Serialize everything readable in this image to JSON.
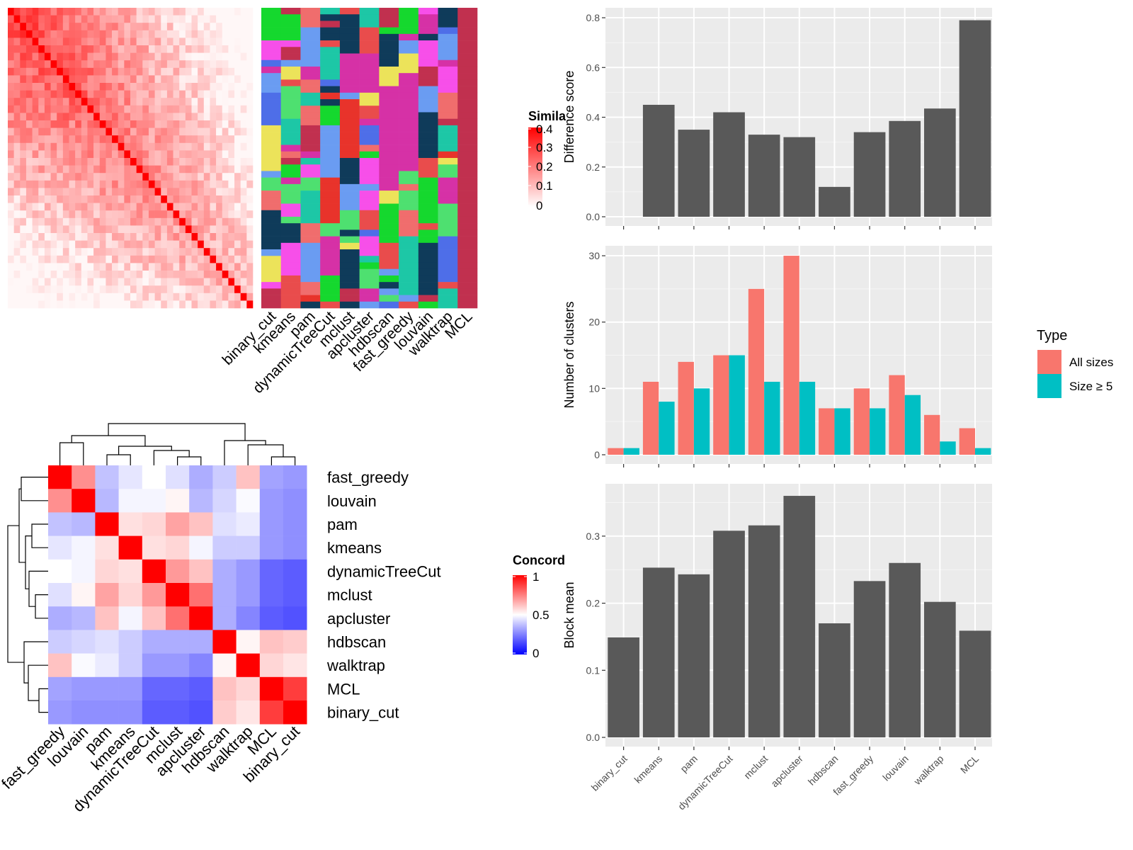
{
  "methods_order": [
    "binary_cut",
    "kmeans",
    "pam",
    "dynamicTreeCut",
    "mclust",
    "apcluster",
    "hdbscan",
    "fast_greedy",
    "louvain",
    "walktrap",
    "MCL"
  ],
  "similarity_heatmap": {
    "legend_title": "Simila",
    "legend_ticks": [
      "0.4",
      "0.3",
      "0.2",
      "0.1",
      "0"
    ],
    "low_color": "#ffffff",
    "high_color": "#ff0000"
  },
  "cluster_colors": [
    "#c1304f",
    "#d631a6",
    "#4e6ee8",
    "#6a9cf2",
    "#e8332b",
    "#f74fe9",
    "#0f3b5a",
    "#15d82e",
    "#e94c4c",
    "#1dc7a6",
    "#ece35a",
    "#4ee070",
    "#f06d6d"
  ],
  "concordance_heatmap": {
    "legend_title": "Concord",
    "legend_ticks": [
      "1",
      "0.5",
      "0"
    ],
    "row_order": [
      "fast_greedy",
      "louvain",
      "pam",
      "kmeans",
      "dynamicTreeCut",
      "mclust",
      "apcluster",
      "hdbscan",
      "walktrap",
      "MCL",
      "binary_cut"
    ],
    "matrix": [
      [
        1.0,
        0.72,
        0.38,
        0.45,
        0.5,
        0.44,
        0.34,
        0.4,
        0.62,
        0.32,
        0.3
      ],
      [
        0.72,
        1.0,
        0.36,
        0.48,
        0.48,
        0.52,
        0.36,
        0.42,
        0.49,
        0.3,
        0.28
      ],
      [
        0.38,
        0.36,
        1.0,
        0.56,
        0.58,
        0.68,
        0.62,
        0.44,
        0.46,
        0.3,
        0.28
      ],
      [
        0.45,
        0.48,
        0.56,
        1.0,
        0.56,
        0.58,
        0.48,
        0.4,
        0.4,
        0.3,
        0.28
      ],
      [
        0.5,
        0.48,
        0.58,
        0.56,
        1.0,
        0.7,
        0.62,
        0.34,
        0.3,
        0.2,
        0.18
      ],
      [
        0.44,
        0.52,
        0.68,
        0.58,
        0.7,
        1.0,
        0.78,
        0.34,
        0.3,
        0.2,
        0.18
      ],
      [
        0.34,
        0.36,
        0.62,
        0.48,
        0.62,
        0.78,
        1.0,
        0.34,
        0.26,
        0.18,
        0.16
      ],
      [
        0.4,
        0.42,
        0.44,
        0.4,
        0.34,
        0.34,
        0.34,
        1.0,
        0.52,
        0.62,
        0.6
      ],
      [
        0.62,
        0.49,
        0.46,
        0.4,
        0.3,
        0.3,
        0.26,
        0.52,
        1.0,
        0.58,
        0.55
      ],
      [
        0.32,
        0.3,
        0.3,
        0.3,
        0.2,
        0.2,
        0.18,
        0.62,
        0.58,
        1.0,
        0.88
      ],
      [
        0.3,
        0.28,
        0.28,
        0.28,
        0.18,
        0.18,
        0.16,
        0.6,
        0.55,
        0.88,
        1.0
      ]
    ]
  },
  "chart_data": [
    {
      "type": "bar",
      "ylabel": "Difference score",
      "categories": [
        "binary_cut",
        "kmeans",
        "pam",
        "dynamicTreeCut",
        "mclust",
        "apcluster",
        "hdbscan",
        "fast_greedy",
        "louvain",
        "walktrap",
        "MCL"
      ],
      "values": [
        0.0,
        0.45,
        0.35,
        0.42,
        0.33,
        0.32,
        0.12,
        0.34,
        0.385,
        0.435,
        0.79
      ],
      "ylim": [
        0,
        0.84
      ],
      "yticks": [
        "0.0",
        "0.2",
        "0.4",
        "0.6",
        "0.8"
      ],
      "color": "#595959"
    },
    {
      "type": "bar",
      "ylabel": "Number of clusters",
      "categories": [
        "binary_cut",
        "kmeans",
        "pam",
        "dynamicTreeCut",
        "mclust",
        "apcluster",
        "hdbscan",
        "fast_greedy",
        "louvain",
        "walktrap",
        "MCL"
      ],
      "series": [
        {
          "name": "All sizes",
          "values": [
            1,
            11,
            14,
            15,
            25,
            30,
            7,
            10,
            12,
            6,
            4
          ],
          "color": "#f8766d"
        },
        {
          "name": "Size ≥ 5",
          "values": [
            1,
            8,
            10,
            15,
            11,
            11,
            7,
            7,
            9,
            2,
            1
          ],
          "color": "#00bfc4"
        }
      ],
      "ylim": [
        0,
        31.5
      ],
      "yticks": [
        "0",
        "10",
        "20",
        "30"
      ],
      "legend": {
        "title": "Type",
        "position": "right"
      }
    },
    {
      "type": "bar",
      "ylabel": "Block mean",
      "categories": [
        "binary_cut",
        "kmeans",
        "pam",
        "dynamicTreeCut",
        "mclust",
        "apcluster",
        "hdbscan",
        "fast_greedy",
        "louvain",
        "walktrap",
        "MCL"
      ],
      "values": [
        0.149,
        0.253,
        0.243,
        0.308,
        0.316,
        0.36,
        0.17,
        0.233,
        0.26,
        0.202,
        0.159
      ],
      "ylim": [
        0,
        0.378
      ],
      "yticks": [
        "0.0",
        "0.1",
        "0.2",
        "0.3"
      ],
      "color": "#595959"
    }
  ]
}
